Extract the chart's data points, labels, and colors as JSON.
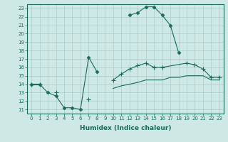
{
  "background_color": "#cde8e5",
  "grid_color": "#a8ccc8",
  "line_color": "#1a6b5a",
  "xlabel": "Humidex (Indice chaleur)",
  "xlim": [
    -0.5,
    23.5
  ],
  "ylim": [
    10.5,
    23.5
  ],
  "yticks": [
    11,
    12,
    13,
    14,
    15,
    16,
    17,
    18,
    19,
    20,
    21,
    22,
    23
  ],
  "xticks": [
    0,
    1,
    2,
    3,
    4,
    5,
    6,
    7,
    8,
    9,
    10,
    11,
    12,
    13,
    14,
    15,
    16,
    17,
    18,
    19,
    20,
    21,
    22,
    23
  ],
  "series1": {
    "x": [
      0,
      1,
      2,
      3,
      4,
      5,
      6,
      7,
      8,
      12,
      13,
      14,
      15,
      16,
      17,
      18,
      22,
      23
    ],
    "y": [
      14,
      14,
      13,
      12.6,
      11.2,
      11.2,
      11.0,
      17.2,
      15.5,
      22.2,
      22.5,
      23.2,
      23.2,
      22.2,
      21.0,
      17.8,
      14.8,
      14.8
    ],
    "segments": [
      {
        "x": [
          0,
          1,
          2,
          3,
          4,
          5,
          6,
          7,
          8
        ],
        "y": [
          14,
          14,
          13,
          12.6,
          11.2,
          11.2,
          11.0,
          17.2,
          15.5
        ]
      },
      {
        "x": [
          12,
          13,
          14,
          15,
          16,
          17,
          18
        ],
        "y": [
          22.2,
          22.5,
          23.2,
          23.2,
          22.2,
          21.0,
          17.8
        ]
      }
    ],
    "marker": "D",
    "markersize": 2.5
  },
  "series2": {
    "segments": [
      {
        "x": [
          0,
          1
        ],
        "y": [
          14,
          14
        ]
      },
      {
        "x": [
          3
        ],
        "y": [
          13
        ]
      },
      {
        "x": [
          7
        ],
        "y": [
          12.2
        ]
      },
      {
        "x": [
          10,
          11,
          12,
          13,
          14,
          15,
          16,
          19,
          20,
          21,
          22,
          23
        ],
        "y": [
          14.5,
          15.2,
          15.8,
          16.2,
          16.5,
          16.0,
          16.0,
          16.5,
          16.3,
          15.8,
          14.8,
          14.8
        ]
      }
    ],
    "marker": "+",
    "markersize": 4
  },
  "series3": {
    "segments": [
      {
        "x": [
          0
        ],
        "y": [
          14
        ]
      },
      {
        "x": [
          10,
          11,
          12,
          13,
          14,
          15,
          16,
          17,
          18,
          19,
          20,
          21,
          22,
          23
        ],
        "y": [
          13.5,
          13.8,
          14.0,
          14.2,
          14.5,
          14.5,
          14.5,
          14.8,
          14.8,
          15.0,
          15.0,
          15.0,
          14.5,
          14.5
        ]
      }
    ],
    "marker": null,
    "markersize": 0
  }
}
